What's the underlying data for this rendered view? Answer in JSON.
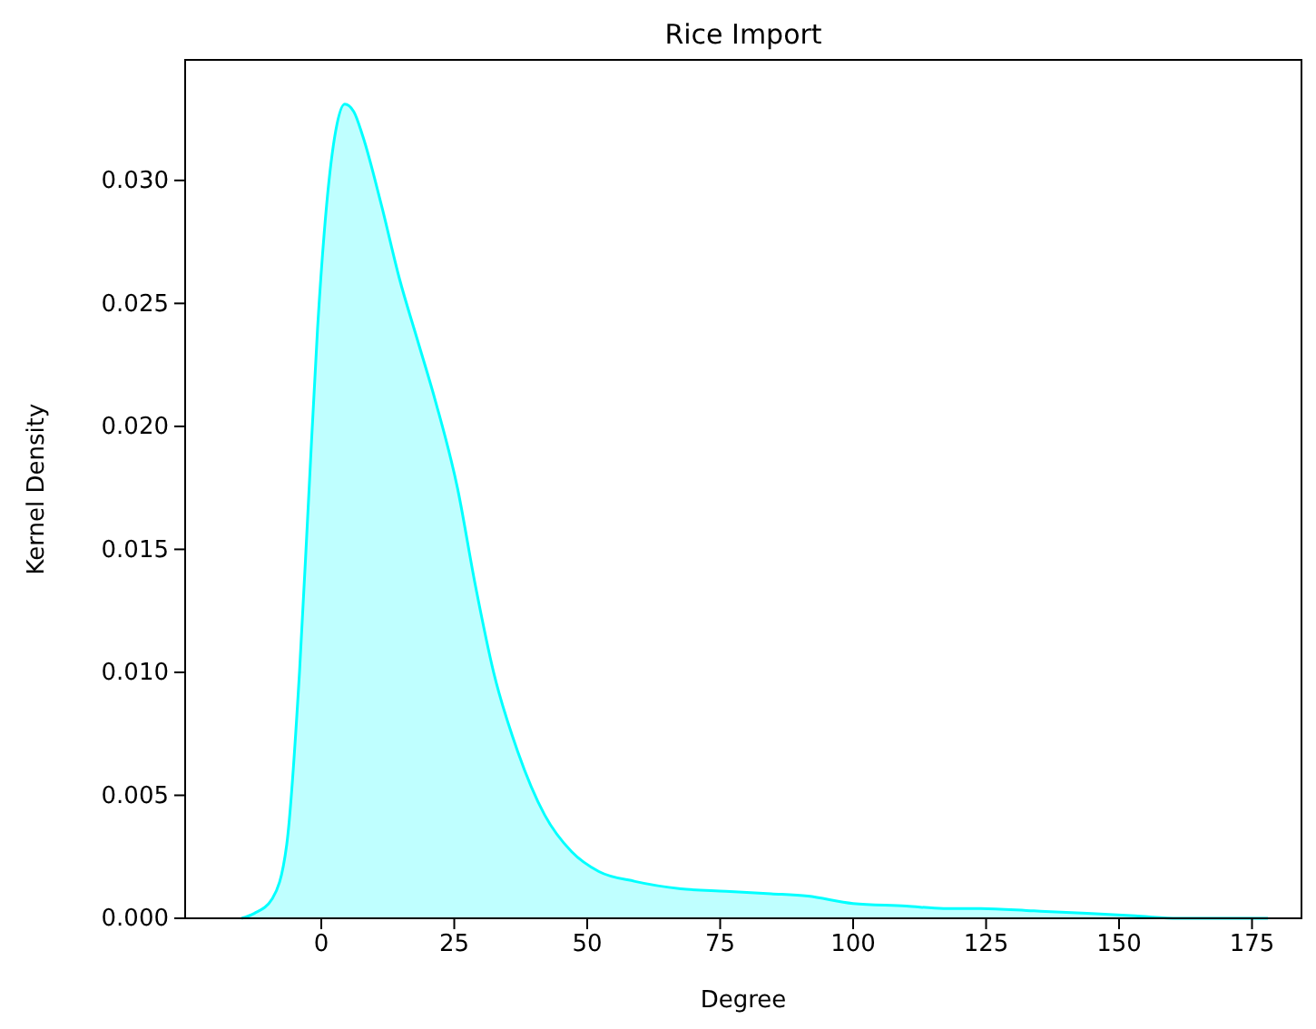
{
  "chart_data": {
    "type": "area",
    "title": "Rice Import",
    "xlabel": "Degree",
    "ylabel": "Kernel Density",
    "xlim": [
      -25.6,
      184.3
    ],
    "ylim": [
      0,
      0.0349
    ],
    "xticks": [
      0,
      25,
      50,
      75,
      100,
      125,
      150,
      175
    ],
    "yticks": [
      {
        "value": 0,
        "label": "0.000"
      },
      {
        "value": 0.005,
        "label": "0.005"
      },
      {
        "value": 0.01,
        "label": "0.010"
      },
      {
        "value": 0.015,
        "label": "0.015"
      },
      {
        "value": 0.02,
        "label": "0.020"
      },
      {
        "value": 0.025,
        "label": "0.025"
      },
      {
        "value": 0.03,
        "label": "0.030"
      }
    ],
    "series": [
      {
        "color": "#00ffff",
        "x": [
          -15,
          -12.6,
          -9.2,
          -6.5,
          -4.1,
          -2.4,
          -0.7,
          1,
          2.7,
          4.4,
          6.1,
          7.8,
          11.3,
          14.7,
          18.1,
          21.5,
          25.6,
          29,
          32.4,
          36.9,
          42,
          47.1,
          52.2,
          59,
          67.6,
          76.1,
          84.6,
          91.5,
          100,
          110,
          117,
          124,
          134,
          144,
          153,
          161,
          172,
          178
        ],
        "values": [
          0,
          0.0002,
          0.0008,
          0.003,
          0.01,
          0.017,
          0.024,
          0.029,
          0.032,
          0.0331,
          0.0328,
          0.0318,
          0.029,
          0.026,
          0.0235,
          0.021,
          0.0175,
          0.0135,
          0.01,
          0.0068,
          0.0042,
          0.0027,
          0.0019,
          0.0015,
          0.0012,
          0.0011,
          0.001,
          0.0009,
          0.0006,
          0.0005,
          0.0004,
          0.0004,
          0.0003,
          0.0002,
          0.0001,
          0,
          0,
          0
        ]
      }
    ]
  }
}
